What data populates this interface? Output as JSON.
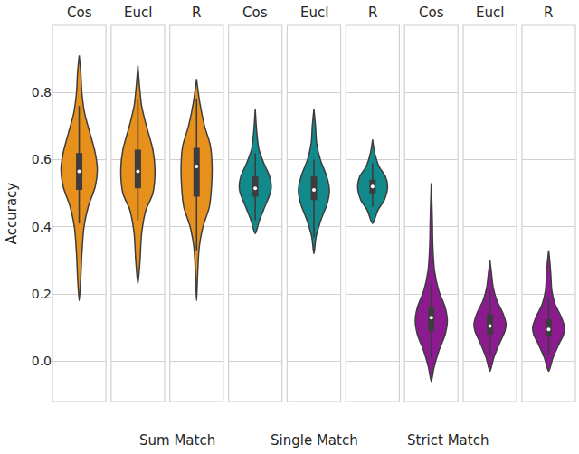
{
  "chart_data": {
    "type": "violin",
    "y_label": "Accuracy",
    "ylim": [
      -0.12,
      1.0
    ],
    "yticks": [
      {
        "value": 0,
        "label": "0.0"
      },
      0.2,
      0.4,
      0.6,
      0.8
    ],
    "grid": true,
    "series": [
      {
        "name": "Sum Match",
        "color": "#e8901c",
        "panels": [
          {
            "name": "Cos",
            "density": {
              "y": [
                0.18,
                0.25,
                0.32,
                0.4,
                0.46,
                0.52,
                0.57,
                0.62,
                0.68,
                0.74,
                0.8,
                0.86,
                0.91
              ],
              "width": [
                0,
                0.03,
                0.05,
                0.09,
                0.17,
                0.3,
                0.34,
                0.3,
                0.2,
                0.1,
                0.05,
                0.03,
                0
              ]
            },
            "box": {
              "whisker_low": 0.41,
              "q1": 0.51,
              "median": 0.565,
              "q3": 0.62,
              "whisker_high": 0.76
            }
          },
          {
            "name": "Eucl",
            "density": {
              "y": [
                0.23,
                0.3,
                0.38,
                0.45,
                0.5,
                0.57,
                0.63,
                0.7,
                0.76,
                0.82,
                0.88
              ],
              "width": [
                0,
                0.04,
                0.07,
                0.15,
                0.28,
                0.32,
                0.28,
                0.16,
                0.07,
                0.03,
                0
              ]
            },
            "box": {
              "whisker_low": 0.42,
              "q1": 0.515,
              "median": 0.565,
              "q3": 0.63,
              "whisker_high": 0.78
            }
          },
          {
            "name": "R",
            "density": {
              "y": [
                0.18,
                0.26,
                0.34,
                0.4,
                0.46,
                0.52,
                0.58,
                0.64,
                0.7,
                0.77,
                0.84
              ],
              "width": [
                0,
                0.02,
                0.05,
                0.12,
                0.24,
                0.28,
                0.29,
                0.26,
                0.15,
                0.06,
                0
              ]
            },
            "box": {
              "whisker_low": 0.33,
              "q1": 0.49,
              "median": 0.58,
              "q3": 0.635,
              "whisker_high": 0.78
            }
          }
        ]
      },
      {
        "name": "Single Match",
        "color": "#12898a",
        "panels": [
          {
            "name": "Cos",
            "density": {
              "y": [
                0.38,
                0.42,
                0.46,
                0.5,
                0.52,
                0.55,
                0.59,
                0.63,
                0.68,
                0.75
              ],
              "width": [
                0,
                0.08,
                0.18,
                0.28,
                0.3,
                0.27,
                0.16,
                0.07,
                0.03,
                0
              ]
            },
            "box": {
              "whisker_low": 0.42,
              "q1": 0.49,
              "median": 0.515,
              "q3": 0.55,
              "whisker_high": 0.62
            }
          },
          {
            "name": "Eucl",
            "density": {
              "y": [
                0.32,
                0.37,
                0.42,
                0.47,
                0.51,
                0.55,
                0.6,
                0.65,
                0.7,
                0.75
              ],
              "width": [
                0,
                0.04,
                0.13,
                0.25,
                0.29,
                0.24,
                0.12,
                0.05,
                0.03,
                0
              ]
            },
            "box": {
              "whisker_low": 0.37,
              "q1": 0.48,
              "median": 0.51,
              "q3": 0.55,
              "whisker_high": 0.6
            }
          },
          {
            "name": "R",
            "density": {
              "y": [
                0.41,
                0.45,
                0.48,
                0.52,
                0.55,
                0.58,
                0.62,
                0.66
              ],
              "width": [
                0,
                0.1,
                0.22,
                0.28,
                0.24,
                0.12,
                0.04,
                0
              ]
            },
            "box": {
              "whisker_low": 0.46,
              "q1": 0.5,
              "median": 0.52,
              "q3": 0.54,
              "whisker_high": 0.59
            }
          }
        ]
      },
      {
        "name": "Strict Match",
        "color": "#8c1b8f",
        "panels": [
          {
            "name": "Cos",
            "density": {
              "y": [
                -0.06,
                -0.02,
                0.03,
                0.08,
                0.12,
                0.16,
                0.21,
                0.27,
                0.34,
                0.42,
                0.48,
                0.53
              ],
              "width": [
                0,
                0.05,
                0.14,
                0.26,
                0.3,
                0.26,
                0.14,
                0.06,
                0.03,
                0.02,
                0.01,
                0
              ]
            },
            "box": {
              "whisker_low": 0.01,
              "q1": 0.09,
              "median": 0.13,
              "q3": 0.16,
              "whisker_high": 0.23
            }
          },
          {
            "name": "Eucl",
            "density": {
              "y": [
                -0.03,
                0.01,
                0.05,
                0.09,
                0.11,
                0.14,
                0.18,
                0.22,
                0.26,
                0.3
              ],
              "width": [
                0,
                0.07,
                0.17,
                0.28,
                0.3,
                0.25,
                0.13,
                0.06,
                0.03,
                0
              ]
            },
            "box": {
              "whisker_low": 0.02,
              "q1": 0.08,
              "median": 0.105,
              "q3": 0.14,
              "whisker_high": 0.21
            }
          },
          {
            "name": "R",
            "density": {
              "y": [
                -0.03,
                0.01,
                0.05,
                0.08,
                0.1,
                0.13,
                0.17,
                0.21,
                0.26,
                0.3,
                0.33
              ],
              "width": [
                0,
                0.08,
                0.19,
                0.28,
                0.3,
                0.24,
                0.12,
                0.06,
                0.04,
                0.02,
                0
              ]
            },
            "box": {
              "whisker_low": 0.02,
              "q1": 0.075,
              "median": 0.095,
              "q3": 0.125,
              "whisker_high": 0.19
            }
          }
        ]
      }
    ]
  }
}
